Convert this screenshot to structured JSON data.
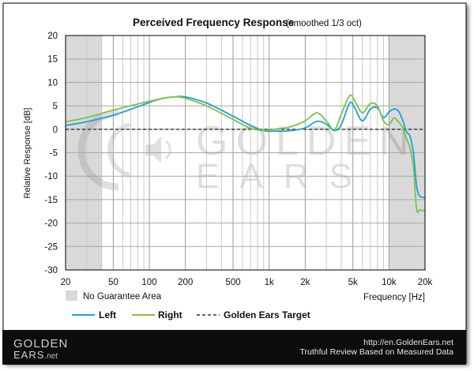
{
  "chart_data": {
    "type": "line",
    "title": "Perceived Frequency Response",
    "subtitle": "(smoothed 1/3 oct)",
    "xlabel": "Frequency [Hz]",
    "ylabel": "Relative Response [dB]",
    "xscale": "log",
    "xlim": [
      20,
      20000
    ],
    "ylim": [
      -30,
      20
    ],
    "xticks": [
      20,
      50,
      100,
      200,
      500,
      1000,
      2000,
      5000,
      10000,
      20000
    ],
    "xtick_labels": [
      "20",
      "50",
      "100",
      "200",
      "500",
      "1k",
      "2k",
      "5k",
      "10k",
      "20k"
    ],
    "yticks": [
      20,
      15,
      10,
      5,
      0,
      -5,
      -10,
      -15,
      -20,
      -25,
      -30
    ],
    "ytick_labels": [
      "20",
      "15",
      "10",
      "5",
      "0",
      "-5",
      "-10",
      "-15",
      "-20",
      "-25",
      "-30"
    ],
    "no_guarantee_ranges": [
      [
        20,
        40
      ],
      [
        10000,
        20000
      ]
    ],
    "no_guarantee_label": "No Guarantee Area",
    "grid": true,
    "series": [
      {
        "name": "Left",
        "color": "#1ba3dc",
        "x": [
          20,
          30,
          50,
          80,
          120,
          160,
          200,
          300,
          500,
          700,
          900,
          1100,
          1500,
          2000,
          2500,
          3000,
          3500,
          4000,
          4700,
          5200,
          6000,
          7000,
          8000,
          9000,
          10000,
          11000,
          12000,
          13000,
          14000,
          15000,
          16000,
          17000,
          18000,
          20000
        ],
        "y": [
          0.8,
          1.6,
          3.0,
          4.8,
          6.4,
          6.9,
          6.9,
          5.6,
          2.8,
          0.8,
          -0.3,
          -0.4,
          -0.3,
          0.3,
          1.7,
          1.1,
          -0.3,
          1.0,
          5.6,
          4.5,
          1.8,
          4.3,
          4.6,
          2.5,
          3.7,
          4.3,
          3.9,
          2.0,
          -0.5,
          -1.5,
          -5.0,
          -12.0,
          -14.2,
          -14.6
        ]
      },
      {
        "name": "Right",
        "color": "#7ec242",
        "x": [
          20,
          30,
          50,
          80,
          120,
          160,
          200,
          300,
          500,
          700,
          900,
          1100,
          1500,
          2000,
          2500,
          3000,
          3500,
          4000,
          4700,
          5200,
          6000,
          7000,
          8000,
          9000,
          10000,
          11000,
          12000,
          13000,
          14000,
          15000,
          16000,
          17000,
          18000,
          20000
        ],
        "y": [
          1.6,
          2.5,
          4.1,
          5.4,
          6.4,
          6.9,
          6.6,
          5.0,
          2.1,
          0.2,
          -0.2,
          0.0,
          0.5,
          1.8,
          3.5,
          1.8,
          -0.1,
          3.2,
          7.2,
          6.0,
          3.5,
          5.5,
          5.0,
          1.8,
          1.0,
          2.4,
          1.6,
          0.4,
          -2.0,
          -4.0,
          -8.0,
          -17.0,
          -17.2,
          -17.4
        ]
      },
      {
        "name": "Golden Ears Target",
        "color": "#333333",
        "style": "dashed",
        "x": [
          20,
          20000
        ],
        "y": [
          0,
          0
        ]
      }
    ],
    "watermark_lines": [
      "GOLDEN",
      "EARS"
    ]
  },
  "legend": {
    "left": "Left",
    "right": "Right",
    "target": "Golden Ears Target"
  },
  "footer": {
    "logo_line1": "GOLDEN",
    "logo_line2": "EARS",
    "logo_net": ".net",
    "url": "http://en.GoldenEars.net",
    "tagline": "Truthful Review Based on Measured Data"
  },
  "colors": {
    "no_guarantee": "#d9d9d9",
    "footer_bg": "#0d0d0d"
  }
}
